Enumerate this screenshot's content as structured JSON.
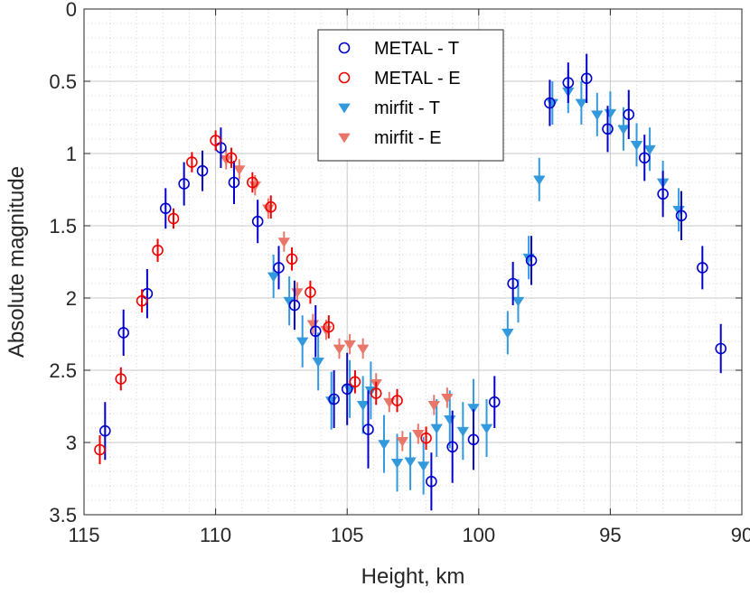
{
  "chart_data": {
    "type": "scatter",
    "title": "",
    "xlabel": "Height, km",
    "ylabel": "Absolute magnitude",
    "xlim": [
      115,
      90
    ],
    "ylim": [
      3.5,
      0
    ],
    "x_reversed": true,
    "y_reversed": true,
    "xticks": [
      115,
      110,
      105,
      100,
      95,
      90
    ],
    "yticks": [
      0,
      0.5,
      1,
      1.5,
      2,
      2.5,
      3,
      3.5
    ],
    "xtick_labels": [
      "115",
      "110",
      "105",
      "100",
      "95",
      "90"
    ],
    "ytick_labels": [
      "0",
      "0.5",
      "1",
      "1.5",
      "2",
      "2.5",
      "3",
      "3.5"
    ],
    "grid": true,
    "minor_grid": true,
    "legend_position": "top-center",
    "series": [
      {
        "name": "METAL - T",
        "marker": "circle-open",
        "color": "#0000cc",
        "points": [
          [
            114.2,
            2.92,
            0.2
          ],
          [
            113.5,
            2.24,
            0.16
          ],
          [
            112.6,
            1.97,
            0.17
          ],
          [
            111.9,
            1.38,
            0.14
          ],
          [
            111.2,
            1.21,
            0.15
          ],
          [
            110.5,
            1.12,
            0.14
          ],
          [
            109.8,
            0.96,
            0.14
          ],
          [
            109.3,
            1.2,
            0.15
          ],
          [
            108.4,
            1.47,
            0.15
          ],
          [
            107.6,
            1.79,
            0.15
          ],
          [
            107.0,
            2.05,
            0.17
          ],
          [
            106.2,
            2.23,
            0.18
          ],
          [
            105.5,
            2.7,
            0.2
          ],
          [
            105.0,
            2.63,
            0.25
          ],
          [
            104.2,
            2.91,
            0.27
          ],
          [
            101.8,
            3.27,
            0.2
          ],
          [
            101.0,
            3.03,
            0.25
          ],
          [
            100.2,
            2.98,
            0.21
          ],
          [
            99.4,
            2.72,
            0.18
          ],
          [
            98.7,
            1.9,
            0.15
          ],
          [
            98.0,
            1.74,
            0.17
          ],
          [
            97.3,
            0.65,
            0.16
          ],
          [
            96.6,
            0.51,
            0.14
          ],
          [
            95.9,
            0.48,
            0.17
          ],
          [
            95.1,
            0.83,
            0.16
          ],
          [
            94.3,
            0.73,
            0.17
          ],
          [
            93.7,
            1.03,
            0.16
          ],
          [
            93.0,
            1.28,
            0.16
          ],
          [
            92.3,
            1.43,
            0.17
          ],
          [
            91.5,
            1.79,
            0.15
          ],
          [
            90.8,
            2.35,
            0.17
          ]
        ]
      },
      {
        "name": "METAL - E",
        "marker": "circle-open",
        "color": "#ee0000",
        "points": [
          [
            114.4,
            3.05,
            0.1
          ],
          [
            113.6,
            2.56,
            0.08
          ],
          [
            112.8,
            2.02,
            0.08
          ],
          [
            112.2,
            1.67,
            0.08
          ],
          [
            111.6,
            1.45,
            0.07
          ],
          [
            110.9,
            1.06,
            0.07
          ],
          [
            110.0,
            0.91,
            0.07
          ],
          [
            109.4,
            1.03,
            0.07
          ],
          [
            108.6,
            1.2,
            0.07
          ],
          [
            107.9,
            1.37,
            0.08
          ],
          [
            107.1,
            1.73,
            0.08
          ],
          [
            106.4,
            1.96,
            0.08
          ],
          [
            105.7,
            2.2,
            0.08
          ],
          [
            104.7,
            2.58,
            0.08
          ],
          [
            103.9,
            2.66,
            0.08
          ],
          [
            103.1,
            2.71,
            0.08
          ],
          [
            102.0,
            2.97,
            0.08
          ]
        ]
      },
      {
        "name": "mirfit - T",
        "marker": "triangle-down",
        "color": "#3399dd",
        "points": [
          [
            107.8,
            1.85,
            0.15
          ],
          [
            107.2,
            2.02,
            0.17
          ],
          [
            106.7,
            2.3,
            0.18
          ],
          [
            106.1,
            2.44,
            0.2
          ],
          [
            105.6,
            2.71,
            0.2
          ],
          [
            104.9,
            2.63,
            0.2
          ],
          [
            104.4,
            2.74,
            0.2
          ],
          [
            104.1,
            2.64,
            0.2
          ],
          [
            103.6,
            3.01,
            0.2
          ],
          [
            103.1,
            3.14,
            0.2
          ],
          [
            102.6,
            3.13,
            0.2
          ],
          [
            102.1,
            3.16,
            0.2
          ],
          [
            101.6,
            2.9,
            0.2
          ],
          [
            101.1,
            2.84,
            0.2
          ],
          [
            100.6,
            2.92,
            0.2
          ],
          [
            100.2,
            2.76,
            0.2
          ],
          [
            99.7,
            2.9,
            0.2
          ],
          [
            98.9,
            2.24,
            0.15
          ],
          [
            98.5,
            2.02,
            0.15
          ],
          [
            98.1,
            1.72,
            0.15
          ],
          [
            97.7,
            1.18,
            0.15
          ],
          [
            97.2,
            0.65,
            0.15
          ],
          [
            96.6,
            0.57,
            0.15
          ],
          [
            96.1,
            0.65,
            0.15
          ],
          [
            95.5,
            0.73,
            0.15
          ],
          [
            95.0,
            0.72,
            0.15
          ],
          [
            94.5,
            0.83,
            0.15
          ],
          [
            94.0,
            0.94,
            0.15
          ],
          [
            93.5,
            0.97,
            0.15
          ],
          [
            93.0,
            1.2,
            0.15
          ],
          [
            92.4,
            1.39,
            0.15
          ]
        ]
      },
      {
        "name": "mirfit - E",
        "marker": "triangle-down",
        "color": "#e8776a",
        "points": [
          [
            109.6,
            1.04,
            0.07
          ],
          [
            109.1,
            1.11,
            0.07
          ],
          [
            108.5,
            1.22,
            0.07
          ],
          [
            108.0,
            1.38,
            0.07
          ],
          [
            107.4,
            1.61,
            0.07
          ],
          [
            106.9,
            1.96,
            0.07
          ],
          [
            106.3,
            2.18,
            0.07
          ],
          [
            105.8,
            2.22,
            0.07
          ],
          [
            105.3,
            2.35,
            0.07
          ],
          [
            104.9,
            2.32,
            0.07
          ],
          [
            104.4,
            2.35,
            0.07
          ],
          [
            103.9,
            2.59,
            0.07
          ],
          [
            103.4,
            2.72,
            0.07
          ],
          [
            102.9,
            2.99,
            0.07
          ],
          [
            102.3,
            2.94,
            0.07
          ],
          [
            101.7,
            2.74,
            0.07
          ],
          [
            101.2,
            2.69,
            0.07
          ]
        ]
      }
    ]
  }
}
